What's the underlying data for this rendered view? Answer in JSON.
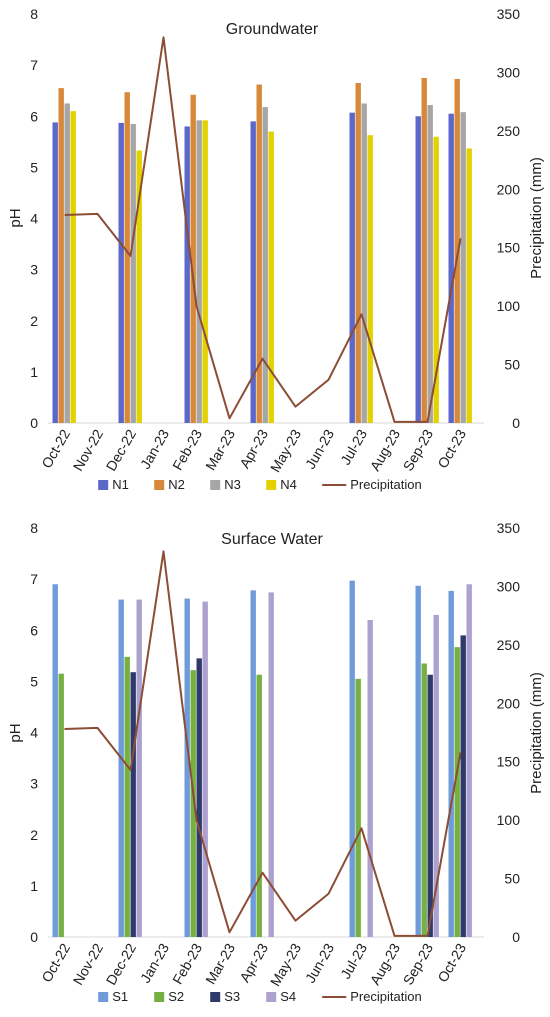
{
  "chart_data": [
    {
      "type": "bar",
      "title": "Groundwater",
      "ylabel": "pH",
      "y2label": "Precipitation (mm)",
      "ylim": [
        0,
        8
      ],
      "y2lim": [
        0,
        350
      ],
      "yticks": [
        "0",
        "1",
        "2",
        "3",
        "4",
        "5",
        "6",
        "7",
        "8"
      ],
      "y2ticks": [
        "0",
        "50",
        "100",
        "150",
        "200",
        "250",
        "300",
        "350"
      ],
      "categories": [
        "Oct-22",
        "Nov-22",
        "Dec-22",
        "Jan-23",
        "Feb-23",
        "Mar-23",
        "Apr-23",
        "May-23",
        "Jun-23",
        "Jul-23",
        "Aug-23",
        "Sep-23",
        "Oct-23"
      ],
      "series": [
        {
          "name": "N1",
          "color": "#5b67c9",
          "values": [
            5.88,
            null,
            5.87,
            null,
            5.8,
            null,
            5.9,
            null,
            null,
            6.07,
            null,
            6.0,
            6.05
          ]
        },
        {
          "name": "N2",
          "color": "#d8883a",
          "values": [
            6.55,
            null,
            6.47,
            null,
            6.42,
            null,
            6.62,
            null,
            null,
            6.65,
            null,
            6.75,
            6.73
          ]
        },
        {
          "name": "N3",
          "color": "#a6a6a6",
          "values": [
            6.25,
            null,
            5.85,
            null,
            5.92,
            null,
            6.18,
            null,
            null,
            6.25,
            null,
            6.22,
            6.08
          ]
        },
        {
          "name": "N4",
          "color": "#e3d200",
          "values": [
            6.1,
            null,
            5.33,
            null,
            5.92,
            null,
            5.7,
            null,
            null,
            5.63,
            null,
            5.6,
            5.37
          ]
        }
      ],
      "line": {
        "name": "Precipitation",
        "color": "#8b4d35",
        "axis": "right",
        "values": [
          178,
          179,
          143,
          330,
          100,
          4,
          55,
          14,
          37,
          93,
          1,
          1,
          158
        ]
      },
      "legend_position": "bottom"
    },
    {
      "type": "bar",
      "title": "Surface Water",
      "ylabel": "pH",
      "y2label": "Precipitation (mm)",
      "ylim": [
        0,
        8
      ],
      "y2lim": [
        0,
        350
      ],
      "yticks": [
        "0",
        "1",
        "2",
        "3",
        "4",
        "5",
        "6",
        "7",
        "8"
      ],
      "y2ticks": [
        "0",
        "50",
        "100",
        "150",
        "200",
        "250",
        "300",
        "350"
      ],
      "categories": [
        "Oct-22",
        "Nov-22",
        "Dec-22",
        "Jan-23",
        "Feb-23",
        "Mar-23",
        "Apr-23",
        "May-23",
        "Jun-23",
        "Jul-23",
        "Aug-23",
        "Sep-23",
        "Oct-23"
      ],
      "series": [
        {
          "name": "S1",
          "color": "#6f9bdb",
          "values": [
            6.9,
            null,
            6.6,
            null,
            6.62,
            null,
            6.78,
            null,
            null,
            6.97,
            null,
            6.87,
            6.77
          ]
        },
        {
          "name": "S2",
          "color": "#76b043",
          "values": [
            5.15,
            null,
            5.48,
            null,
            5.22,
            null,
            5.13,
            null,
            null,
            5.05,
            null,
            5.35,
            5.67
          ]
        },
        {
          "name": "S3",
          "color": "#2f3a6b",
          "values": [
            null,
            null,
            5.18,
            null,
            5.45,
            null,
            null,
            null,
            null,
            null,
            null,
            5.13,
            5.9
          ]
        },
        {
          "name": "S4",
          "color": "#ada2cf",
          "values": [
            null,
            null,
            6.6,
            null,
            6.56,
            null,
            6.74,
            null,
            null,
            6.2,
            null,
            6.3,
            6.9
          ]
        }
      ],
      "line": {
        "name": "Precipitation",
        "color": "#8b4d35",
        "axis": "right",
        "values": [
          178,
          179,
          143,
          330,
          100,
          4,
          55,
          14,
          37,
          93,
          1,
          1,
          158
        ]
      },
      "legend_position": "bottom"
    }
  ]
}
